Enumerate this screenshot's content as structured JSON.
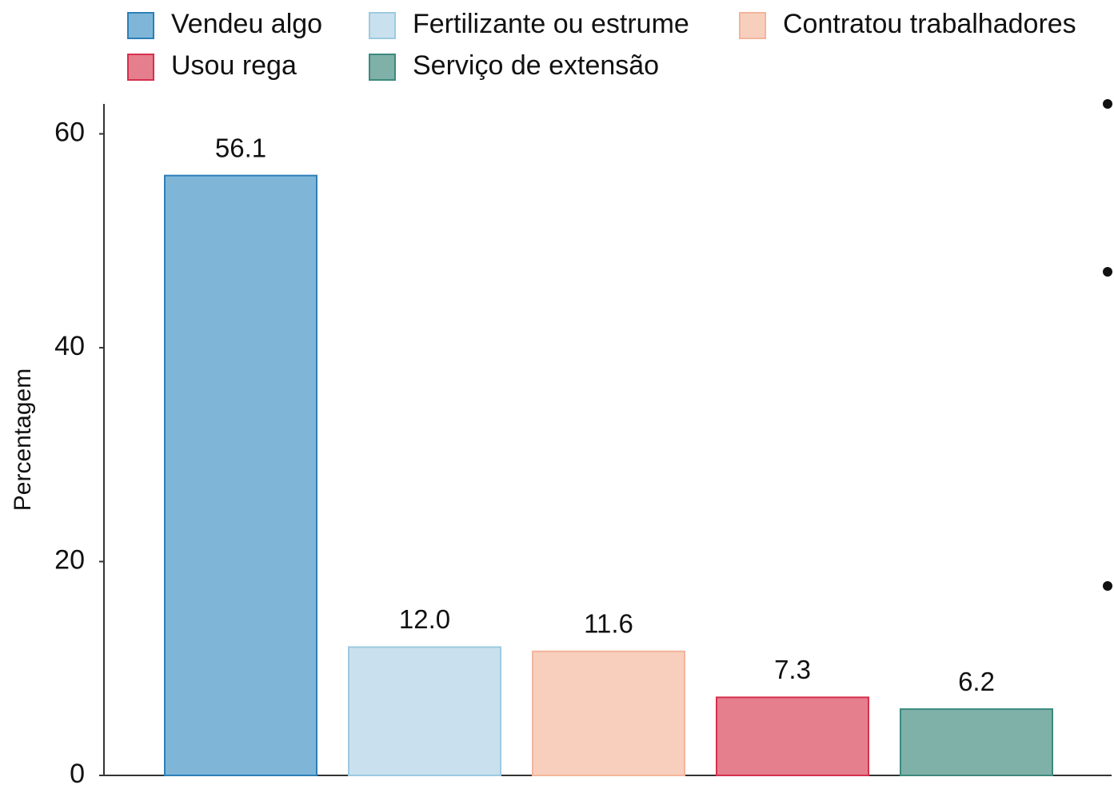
{
  "chart_data": {
    "type": "bar",
    "y_label": "Percentagem",
    "categories": [
      "Vendeu algo",
      "Fertilizante ou estrume",
      "Contratou trabalhadores",
      "Usou rega",
      "Serviço de extensão"
    ],
    "values": [
      56.1,
      12.0,
      11.6,
      7.3,
      6.2
    ],
    "value_labels": [
      "56.1",
      "12.0",
      "11.6",
      "7.3",
      "6.2"
    ],
    "colors": [
      "#7fb6d8",
      "#c9e1ee",
      "#f8cfbd",
      "#e57f8e",
      "#7fb1a9"
    ],
    "edgecolors": [
      "#2c7fb8",
      "#9ccae0",
      "#f3b49b",
      "#d6304e",
      "#3d8a7d"
    ],
    "ylim": [
      0,
      62.8
    ],
    "yticks": [
      0,
      20,
      40,
      60
    ],
    "grid": false,
    "legend": "top"
  }
}
